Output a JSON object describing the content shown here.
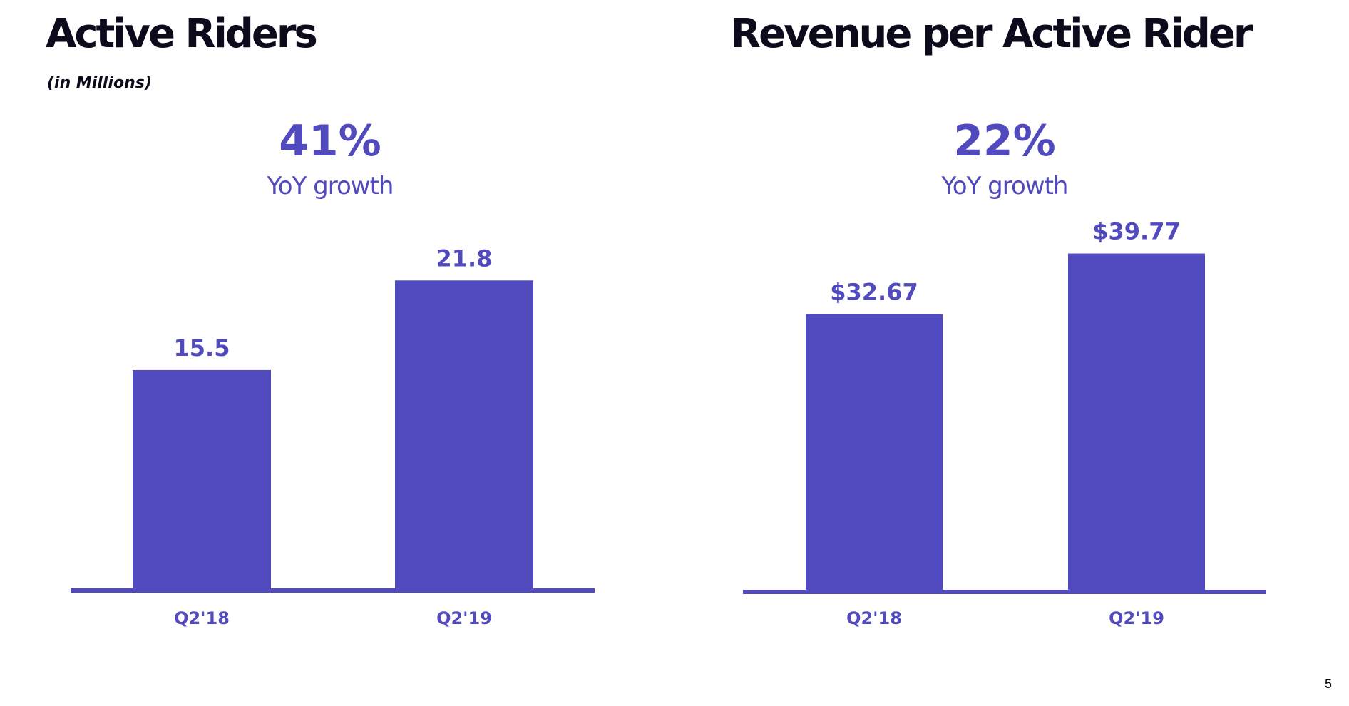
{
  "page": {
    "number": "5"
  },
  "panels": [
    {
      "title": "Active Riders",
      "subtitle": "(in Millions)",
      "growth": {
        "value": "41%",
        "label": "YoY growth"
      }
    },
    {
      "title": "Revenue per Active Rider",
      "subtitle": "",
      "growth": {
        "value": "22%",
        "label": "YoY growth"
      }
    }
  ],
  "colors": {
    "bar": "#524bbf",
    "accent_text": "#5149be",
    "title": "#0c0b1c"
  },
  "chart_data": [
    {
      "type": "bar",
      "title": "Active Riders",
      "subtitle": "(in Millions)",
      "categories": [
        "Q2'18",
        "Q2'19"
      ],
      "values": [
        15.5,
        21.8
      ],
      "data_labels": [
        "15.5",
        "21.8"
      ],
      "xlabel": "",
      "ylabel": "",
      "ylim": [
        0,
        34
      ],
      "grid": false,
      "legend": "none"
    },
    {
      "type": "bar",
      "title": "Revenue per Active Rider",
      "categories": [
        "Q2'18",
        "Q2'19"
      ],
      "values": [
        32.67,
        39.77
      ],
      "data_labels": [
        "$32.67",
        "$39.77"
      ],
      "xlabel": "",
      "ylabel": "",
      "ylim": [
        0,
        57
      ],
      "grid": false,
      "legend": "none"
    }
  ]
}
